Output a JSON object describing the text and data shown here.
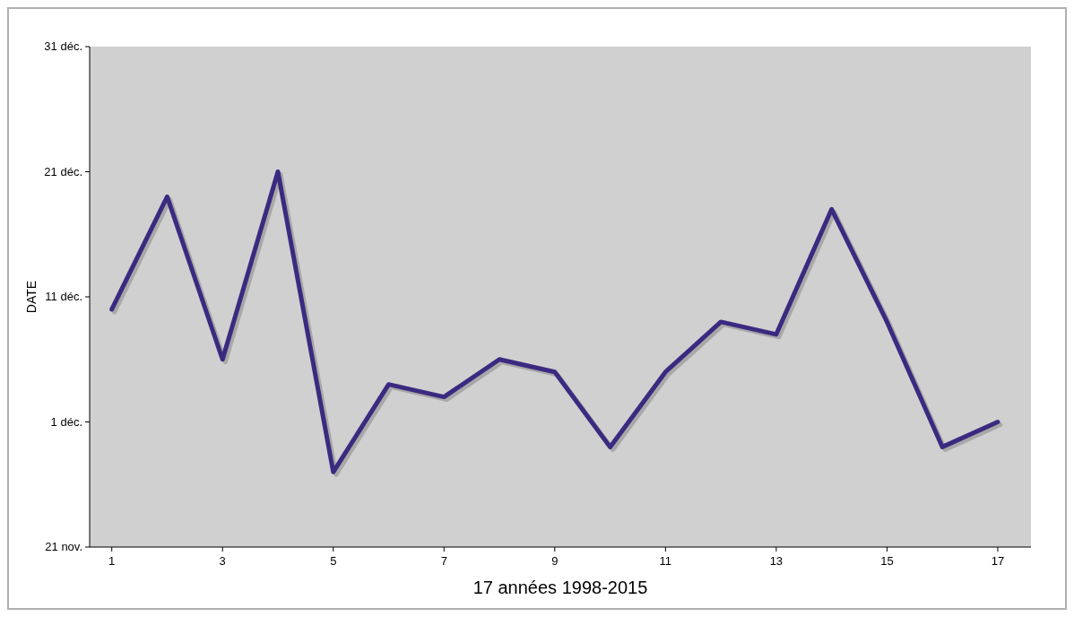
{
  "chart_data": {
    "type": "line",
    "xlabel": "17 années 1998-2015",
    "ylabel": "DATE",
    "x": [
      1,
      2,
      3,
      4,
      5,
      6,
      7,
      8,
      9,
      10,
      11,
      12,
      13,
      14,
      15,
      16,
      17
    ],
    "series": [
      {
        "color": "#3b2a80",
        "values": [
          10,
          19,
          6,
          21,
          -3,
          4,
          3,
          6,
          5,
          -1,
          5,
          9,
          8,
          18,
          9,
          -1,
          1
        ]
      }
    ],
    "xlim": [
      0.6,
      17.6
    ],
    "xticks": [
      1,
      3,
      5,
      7,
      9,
      11,
      13,
      15,
      17
    ],
    "ylim": [
      -9,
      31
    ],
    "yticks": [
      {
        "value": -9,
        "label": "21 nov."
      },
      {
        "value": 1,
        "label": "1 déc."
      },
      {
        "value": 11,
        "label": "11 déc."
      },
      {
        "value": 21,
        "label": "21 déc."
      },
      {
        "value": 31,
        "label": "31 déc."
      }
    ],
    "marker": "none",
    "line_style": "solid"
  }
}
